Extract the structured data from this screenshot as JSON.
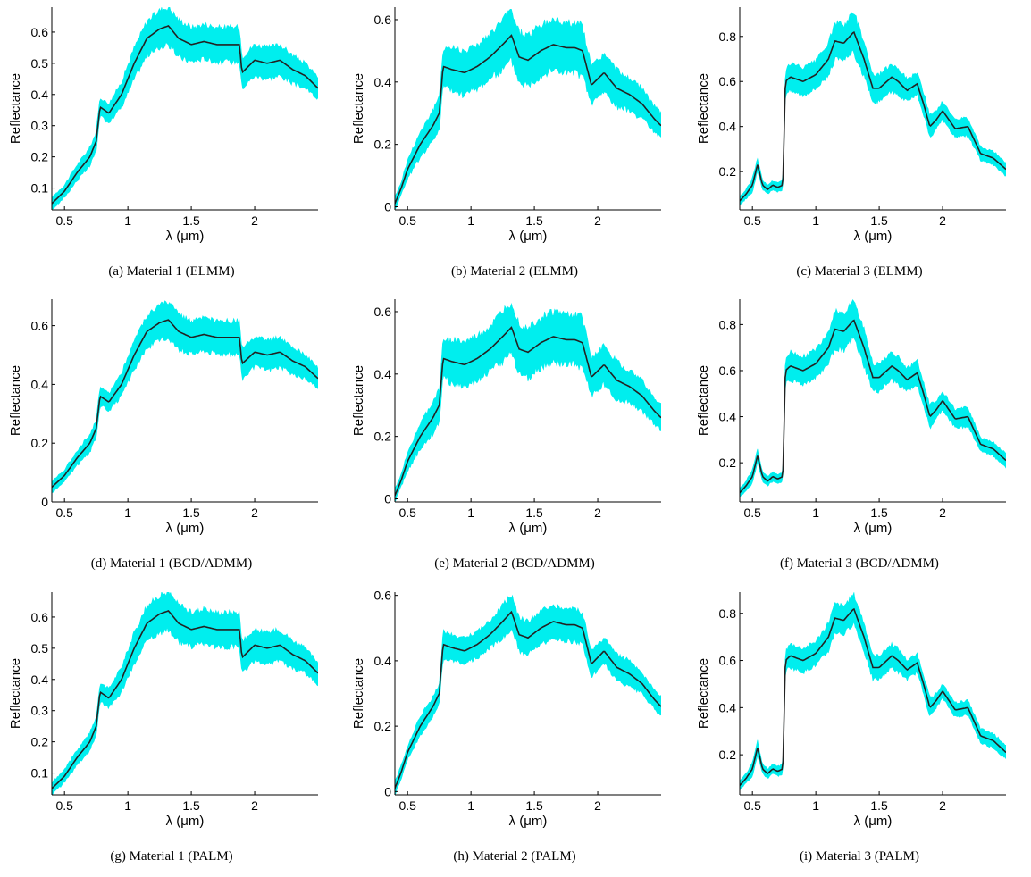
{
  "chart_data": [
    {
      "type": "area",
      "caption": "(a) Material 1 (ELMM)",
      "xlabel": "λ (μm)",
      "ylabel": "Reflectance",
      "xlim": [
        0.4,
        2.5
      ],
      "ylim": [
        0.03,
        0.68
      ],
      "xticks": [
        0.5,
        1,
        1.5,
        2
      ],
      "xtick_labels": [
        "0.5",
        "1",
        "1.5",
        "2"
      ],
      "yticks": [
        0.1,
        0.2,
        0.3,
        0.4,
        0.5,
        0.6
      ],
      "ytick_labels": [
        "0.1",
        "0.2",
        "0.3",
        "0.4",
        "0.5",
        "0.6"
      ],
      "x": [
        0.4,
        0.5,
        0.6,
        0.7,
        0.75,
        0.78,
        0.85,
        0.95,
        1.05,
        1.15,
        1.25,
        1.32,
        1.4,
        1.5,
        1.6,
        1.7,
        1.8,
        1.88,
        1.9,
        2.0,
        2.1,
        2.2,
        2.3,
        2.4,
        2.5
      ],
      "mean": [
        0.05,
        0.09,
        0.15,
        0.2,
        0.25,
        0.36,
        0.34,
        0.4,
        0.5,
        0.58,
        0.61,
        0.62,
        0.58,
        0.56,
        0.57,
        0.56,
        0.56,
        0.56,
        0.47,
        0.51,
        0.5,
        0.51,
        0.48,
        0.46,
        0.42
      ],
      "spread": [
        0.02,
        0.02,
        0.025,
        0.03,
        0.03,
        0.03,
        0.03,
        0.04,
        0.05,
        0.055,
        0.06,
        0.06,
        0.06,
        0.055,
        0.055,
        0.055,
        0.055,
        0.055,
        0.05,
        0.05,
        0.05,
        0.05,
        0.045,
        0.04,
        0.035
      ]
    },
    {
      "type": "area",
      "caption": "(b) Material 2 (ELMM)",
      "xlabel": "λ (μm)",
      "ylabel": "Reflectance",
      "xlim": [
        0.4,
        2.5
      ],
      "ylim": [
        -0.01,
        0.64
      ],
      "xticks": [
        0.5,
        1,
        1.5,
        2
      ],
      "xtick_labels": [
        "0.5",
        "1",
        "1.5",
        "2"
      ],
      "yticks": [
        0,
        0.2,
        0.4,
        0.6
      ],
      "ytick_labels": [
        "0",
        "0.2",
        "0.4",
        "0.6"
      ],
      "x": [
        0.4,
        0.45,
        0.5,
        0.6,
        0.7,
        0.75,
        0.78,
        0.85,
        0.95,
        1.05,
        1.15,
        1.25,
        1.32,
        1.38,
        1.45,
        1.55,
        1.65,
        1.75,
        1.82,
        1.88,
        1.95,
        2.05,
        2.15,
        2.25,
        2.35,
        2.45,
        2.5
      ],
      "mean": [
        0.01,
        0.06,
        0.12,
        0.2,
        0.26,
        0.3,
        0.45,
        0.44,
        0.43,
        0.45,
        0.48,
        0.52,
        0.55,
        0.48,
        0.47,
        0.5,
        0.52,
        0.51,
        0.51,
        0.5,
        0.39,
        0.43,
        0.38,
        0.36,
        0.33,
        0.28,
        0.26
      ],
      "spread": [
        0.02,
        0.02,
        0.03,
        0.04,
        0.05,
        0.05,
        0.06,
        0.07,
        0.07,
        0.07,
        0.07,
        0.08,
        0.08,
        0.08,
        0.08,
        0.08,
        0.08,
        0.08,
        0.08,
        0.08,
        0.06,
        0.06,
        0.06,
        0.05,
        0.05,
        0.04,
        0.04
      ]
    },
    {
      "type": "area",
      "caption": "(c) Material 3 (ELMM)",
      "xlabel": "λ (μm)",
      "ylabel": "Reflectance",
      "xlim": [
        0.4,
        2.5
      ],
      "ylim": [
        0.03,
        0.93
      ],
      "xticks": [
        0.5,
        1,
        1.5,
        2
      ],
      "xtick_labels": [
        "0.5",
        "1",
        "1.5",
        "2"
      ],
      "yticks": [
        0.2,
        0.4,
        0.6,
        0.8
      ],
      "ytick_labels": [
        "0.2",
        "0.4",
        "0.6",
        "0.8"
      ],
      "x": [
        0.4,
        0.45,
        0.5,
        0.54,
        0.58,
        0.62,
        0.66,
        0.7,
        0.74,
        0.76,
        0.8,
        0.9,
        1.0,
        1.1,
        1.15,
        1.22,
        1.3,
        1.38,
        1.45,
        1.5,
        1.6,
        1.65,
        1.72,
        1.8,
        1.85,
        1.9,
        1.95,
        2.0,
        2.1,
        2.2,
        2.3,
        2.4,
        2.5
      ],
      "mean": [
        0.07,
        0.1,
        0.14,
        0.23,
        0.14,
        0.12,
        0.14,
        0.13,
        0.14,
        0.6,
        0.62,
        0.6,
        0.63,
        0.7,
        0.78,
        0.77,
        0.82,
        0.7,
        0.57,
        0.57,
        0.62,
        0.6,
        0.56,
        0.59,
        0.5,
        0.4,
        0.43,
        0.47,
        0.39,
        0.4,
        0.28,
        0.26,
        0.21
      ],
      "spread": [
        0.02,
        0.02,
        0.03,
        0.03,
        0.02,
        0.02,
        0.02,
        0.02,
        0.02,
        0.05,
        0.06,
        0.06,
        0.06,
        0.07,
        0.08,
        0.08,
        0.09,
        0.08,
        0.06,
        0.06,
        0.06,
        0.06,
        0.05,
        0.05,
        0.05,
        0.05,
        0.04,
        0.04,
        0.04,
        0.04,
        0.03,
        0.03,
        0.03
      ]
    },
    {
      "type": "area",
      "caption": "(d) Material 1 (BCD/ADMM)",
      "xlabel": "λ (μm)",
      "ylabel": "Reflectance",
      "xlim": [
        0.4,
        2.5
      ],
      "ylim": [
        0,
        0.69
      ],
      "xticks": [
        0.5,
        1,
        1.5,
        2
      ],
      "xtick_labels": [
        "0.5",
        "1",
        "1.5",
        "2"
      ],
      "yticks": [
        0,
        0.2,
        0.4,
        0.6
      ],
      "ytick_labels": [
        "0",
        "0.2",
        "0.4",
        "0.6"
      ],
      "x": [
        0.4,
        0.5,
        0.6,
        0.7,
        0.75,
        0.78,
        0.85,
        0.95,
        1.05,
        1.15,
        1.25,
        1.32,
        1.4,
        1.5,
        1.6,
        1.7,
        1.8,
        1.88,
        1.9,
        2.0,
        2.1,
        2.2,
        2.3,
        2.4,
        2.5
      ],
      "mean": [
        0.05,
        0.09,
        0.15,
        0.2,
        0.25,
        0.36,
        0.34,
        0.4,
        0.5,
        0.58,
        0.61,
        0.62,
        0.58,
        0.56,
        0.57,
        0.56,
        0.56,
        0.56,
        0.47,
        0.51,
        0.5,
        0.51,
        0.48,
        0.46,
        0.42
      ],
      "spread": [
        0.02,
        0.02,
        0.025,
        0.03,
        0.03,
        0.03,
        0.03,
        0.04,
        0.05,
        0.055,
        0.06,
        0.06,
        0.06,
        0.055,
        0.055,
        0.055,
        0.055,
        0.055,
        0.05,
        0.05,
        0.05,
        0.05,
        0.045,
        0.04,
        0.035
      ]
    },
    {
      "type": "area",
      "caption": "(e) Material 2 (BCD/ADMM)",
      "xlabel": "λ (μm)",
      "ylabel": "Reflectance",
      "xlim": [
        0.4,
        2.5
      ],
      "ylim": [
        -0.01,
        0.64
      ],
      "xticks": [
        0.5,
        1,
        1.5,
        2
      ],
      "xtick_labels": [
        "0.5",
        "1",
        "1.5",
        "2"
      ],
      "yticks": [
        0,
        0.2,
        0.4,
        0.6
      ],
      "ytick_labels": [
        "0",
        "0.2",
        "0.4",
        "0.6"
      ],
      "x": [
        0.4,
        0.45,
        0.5,
        0.6,
        0.7,
        0.75,
        0.78,
        0.85,
        0.95,
        1.05,
        1.15,
        1.25,
        1.32,
        1.38,
        1.45,
        1.55,
        1.65,
        1.75,
        1.82,
        1.88,
        1.95,
        2.05,
        2.15,
        2.25,
        2.35,
        2.45,
        2.5
      ],
      "mean": [
        0.01,
        0.06,
        0.12,
        0.2,
        0.26,
        0.3,
        0.45,
        0.44,
        0.43,
        0.45,
        0.48,
        0.52,
        0.55,
        0.48,
        0.47,
        0.5,
        0.52,
        0.51,
        0.51,
        0.5,
        0.39,
        0.43,
        0.38,
        0.36,
        0.33,
        0.28,
        0.26
      ],
      "spread": [
        0.02,
        0.02,
        0.03,
        0.04,
        0.05,
        0.05,
        0.06,
        0.07,
        0.07,
        0.07,
        0.07,
        0.08,
        0.08,
        0.08,
        0.08,
        0.08,
        0.08,
        0.08,
        0.08,
        0.08,
        0.06,
        0.06,
        0.06,
        0.05,
        0.05,
        0.04,
        0.04
      ]
    },
    {
      "type": "area",
      "caption": "(f) Material 3 (BCD/ADMM)",
      "xlabel": "λ (μm)",
      "ylabel": "Reflectance",
      "xlim": [
        0.4,
        2.5
      ],
      "ylim": [
        0.03,
        0.91
      ],
      "xticks": [
        0.5,
        1,
        1.5,
        2
      ],
      "xtick_labels": [
        "0.5",
        "1",
        "1.5",
        "2"
      ],
      "yticks": [
        0.2,
        0.4,
        0.6,
        0.8
      ],
      "ytick_labels": [
        "0.2",
        "0.4",
        "0.6",
        "0.8"
      ],
      "x": [
        0.4,
        0.45,
        0.5,
        0.54,
        0.58,
        0.62,
        0.66,
        0.7,
        0.74,
        0.76,
        0.8,
        0.9,
        1.0,
        1.1,
        1.15,
        1.22,
        1.3,
        1.38,
        1.45,
        1.5,
        1.6,
        1.65,
        1.72,
        1.8,
        1.85,
        1.9,
        1.95,
        2.0,
        2.1,
        2.2,
        2.3,
        2.4,
        2.5
      ],
      "mean": [
        0.07,
        0.1,
        0.14,
        0.23,
        0.14,
        0.12,
        0.14,
        0.13,
        0.14,
        0.6,
        0.62,
        0.6,
        0.63,
        0.7,
        0.78,
        0.77,
        0.82,
        0.7,
        0.57,
        0.57,
        0.62,
        0.6,
        0.56,
        0.59,
        0.5,
        0.4,
        0.43,
        0.47,
        0.39,
        0.4,
        0.28,
        0.26,
        0.21
      ],
      "spread": [
        0.02,
        0.02,
        0.03,
        0.03,
        0.02,
        0.02,
        0.02,
        0.02,
        0.02,
        0.05,
        0.06,
        0.06,
        0.06,
        0.07,
        0.08,
        0.08,
        0.08,
        0.08,
        0.06,
        0.06,
        0.06,
        0.06,
        0.05,
        0.05,
        0.05,
        0.05,
        0.04,
        0.04,
        0.04,
        0.04,
        0.03,
        0.03,
        0.03
      ]
    },
    {
      "type": "area",
      "caption": "(g) Material 1 (PALM)",
      "xlabel": "λ (μm)",
      "ylabel": "Reflectance",
      "xlim": [
        0.4,
        2.5
      ],
      "ylim": [
        0.03,
        0.68
      ],
      "xticks": [
        0.5,
        1,
        1.5,
        2
      ],
      "xtick_labels": [
        "0.5",
        "1",
        "1.5",
        "2"
      ],
      "yticks": [
        0.1,
        0.2,
        0.3,
        0.4,
        0.5,
        0.6
      ],
      "ytick_labels": [
        "0.1",
        "0.2",
        "0.3",
        "0.4",
        "0.5",
        "0.6"
      ],
      "x": [
        0.4,
        0.5,
        0.6,
        0.7,
        0.75,
        0.78,
        0.85,
        0.95,
        1.05,
        1.15,
        1.25,
        1.32,
        1.4,
        1.5,
        1.6,
        1.7,
        1.8,
        1.88,
        1.9,
        2.0,
        2.1,
        2.2,
        2.3,
        2.4,
        2.5
      ],
      "mean": [
        0.05,
        0.09,
        0.15,
        0.2,
        0.25,
        0.36,
        0.34,
        0.4,
        0.5,
        0.58,
        0.61,
        0.62,
        0.58,
        0.56,
        0.57,
        0.56,
        0.56,
        0.56,
        0.47,
        0.51,
        0.5,
        0.51,
        0.48,
        0.46,
        0.42
      ],
      "spread": [
        0.02,
        0.02,
        0.025,
        0.03,
        0.03,
        0.03,
        0.03,
        0.04,
        0.05,
        0.055,
        0.06,
        0.06,
        0.06,
        0.055,
        0.055,
        0.055,
        0.055,
        0.055,
        0.05,
        0.05,
        0.05,
        0.05,
        0.045,
        0.04,
        0.035
      ]
    },
    {
      "type": "area",
      "caption": "(h) Material 2 (PALM)",
      "xlabel": "λ (μm)",
      "ylabel": "Reflectance",
      "xlim": [
        0.4,
        2.5
      ],
      "ylim": [
        -0.01,
        0.61
      ],
      "xticks": [
        0.5,
        1,
        1.5,
        2
      ],
      "xtick_labels": [
        "0.5",
        "1",
        "1.5",
        "2"
      ],
      "yticks": [
        0,
        0.2,
        0.4,
        0.6
      ],
      "ytick_labels": [
        "0",
        "0.2",
        "0.4",
        "0.6"
      ],
      "x": [
        0.4,
        0.45,
        0.5,
        0.6,
        0.7,
        0.75,
        0.78,
        0.85,
        0.95,
        1.05,
        1.15,
        1.25,
        1.32,
        1.38,
        1.45,
        1.55,
        1.65,
        1.75,
        1.82,
        1.88,
        1.95,
        2.05,
        2.15,
        2.25,
        2.35,
        2.45,
        2.5
      ],
      "mean": [
        0.01,
        0.06,
        0.12,
        0.2,
        0.26,
        0.3,
        0.45,
        0.44,
        0.43,
        0.45,
        0.48,
        0.52,
        0.55,
        0.48,
        0.47,
        0.5,
        0.52,
        0.51,
        0.51,
        0.5,
        0.39,
        0.43,
        0.38,
        0.36,
        0.33,
        0.28,
        0.26
      ],
      "spread": [
        0.02,
        0.02,
        0.02,
        0.03,
        0.03,
        0.03,
        0.04,
        0.04,
        0.04,
        0.04,
        0.04,
        0.05,
        0.05,
        0.05,
        0.05,
        0.05,
        0.05,
        0.05,
        0.05,
        0.05,
        0.04,
        0.04,
        0.04,
        0.04,
        0.03,
        0.03,
        0.03
      ]
    },
    {
      "type": "area",
      "caption": "(i) Material 3 (PALM)",
      "xlabel": "λ (μm)",
      "ylabel": "Reflectance",
      "xlim": [
        0.4,
        2.5
      ],
      "ylim": [
        0.03,
        0.89
      ],
      "xticks": [
        0.5,
        1,
        1.5,
        2
      ],
      "xtick_labels": [
        "0.5",
        "1",
        "1.5",
        "2"
      ],
      "yticks": [
        0.2,
        0.4,
        0.6,
        0.8
      ],
      "ytick_labels": [
        "0.2",
        "0.4",
        "0.6",
        "0.8"
      ],
      "x": [
        0.4,
        0.45,
        0.5,
        0.54,
        0.58,
        0.62,
        0.66,
        0.7,
        0.74,
        0.76,
        0.8,
        0.9,
        1.0,
        1.1,
        1.15,
        1.22,
        1.3,
        1.38,
        1.45,
        1.5,
        1.6,
        1.65,
        1.72,
        1.8,
        1.85,
        1.9,
        1.95,
        2.0,
        2.1,
        2.2,
        2.3,
        2.4,
        2.5
      ],
      "mean": [
        0.07,
        0.1,
        0.14,
        0.23,
        0.14,
        0.12,
        0.14,
        0.13,
        0.14,
        0.6,
        0.62,
        0.6,
        0.63,
        0.7,
        0.78,
        0.77,
        0.82,
        0.7,
        0.57,
        0.57,
        0.62,
        0.6,
        0.56,
        0.59,
        0.5,
        0.4,
        0.43,
        0.47,
        0.39,
        0.4,
        0.28,
        0.26,
        0.21
      ],
      "spread": [
        0.02,
        0.02,
        0.03,
        0.03,
        0.02,
        0.02,
        0.02,
        0.02,
        0.02,
        0.04,
        0.05,
        0.05,
        0.05,
        0.06,
        0.06,
        0.06,
        0.06,
        0.06,
        0.05,
        0.05,
        0.05,
        0.05,
        0.04,
        0.04,
        0.04,
        0.04,
        0.03,
        0.03,
        0.03,
        0.03,
        0.03,
        0.03,
        0.03
      ]
    }
  ],
  "colors": {
    "band": "#00eeee",
    "line": "#222222",
    "axis": "#000000"
  }
}
